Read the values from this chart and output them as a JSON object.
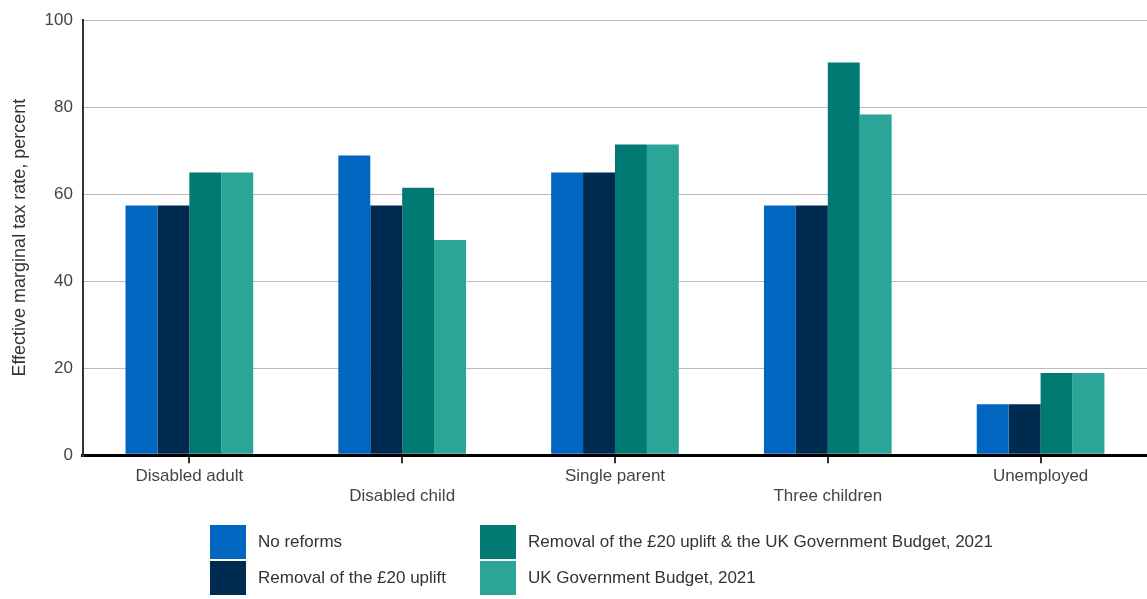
{
  "chart_data": {
    "type": "bar",
    "ylabel": "Effective marginal tax rate, percent",
    "categories": [
      "Disabled adult",
      "Disabled child",
      "Single parent",
      "Three children",
      "Unemployed"
    ],
    "series": [
      {
        "name": "No reforms",
        "color": "#0066c0",
        "values": [
          57.4,
          68.9,
          65,
          57.4,
          11.7
        ]
      },
      {
        "name": "Removal of the £20 uplift",
        "color": "#002b50",
        "values": [
          57.4,
          57.4,
          65,
          57.4,
          11.7
        ]
      },
      {
        "name": "Removal of the £20 uplift & the UK Government Budget, 2021",
        "color": "#007a73",
        "values": [
          65,
          61.5,
          71.4,
          90.3,
          18.9
        ]
      },
      {
        "name": "UK Government Budget, 2021",
        "color": "#2aa597",
        "values": [
          65,
          49.5,
          71.4,
          78.3,
          18.9
        ]
      }
    ],
    "ylim": [
      0,
      100
    ],
    "yticks": [
      0,
      20,
      40,
      60,
      80,
      100
    ],
    "grid": "y",
    "legend": "bottom"
  }
}
